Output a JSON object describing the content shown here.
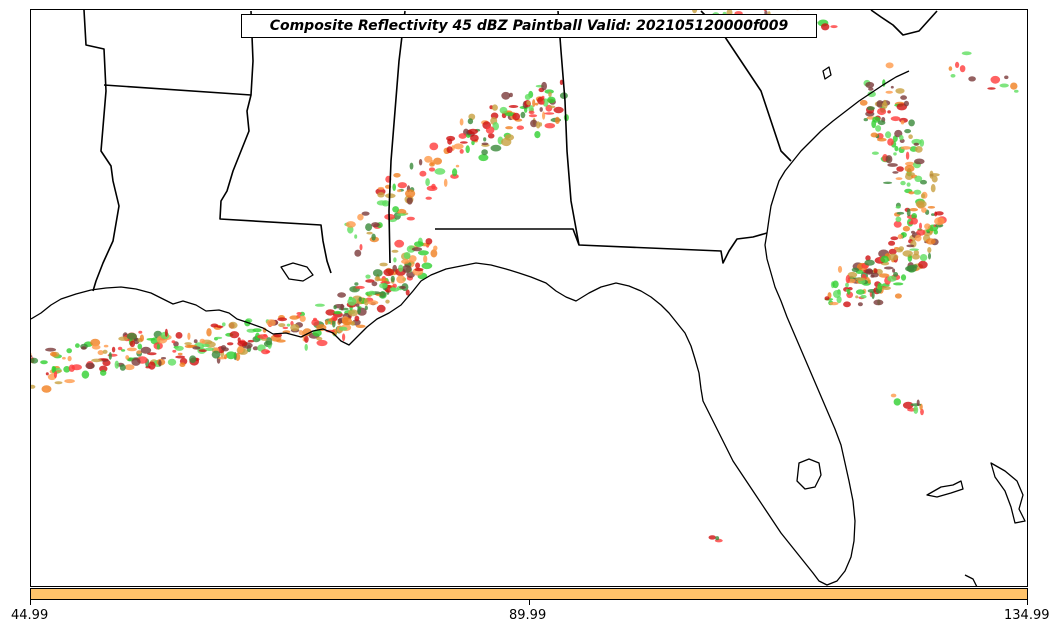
{
  "title": "Composite Reflectivity 45 dBZ Paintball Valid: 202105120000f009",
  "colorbar": {
    "color": "#ffc36a",
    "ticks": [
      "44.99",
      "89.99",
      "134.99"
    ]
  },
  "map": {
    "region": "Southeastern United States",
    "features": [
      "state-borders",
      "coastline",
      "florida-peninsula",
      "gulf-of-mexico",
      "atlantic-ocean"
    ],
    "paintball_colors": [
      "#ff3b3b",
      "#ff9a4a",
      "#2fcf2f",
      "#5fdf5f",
      "#c8a040",
      "#7a3a3a",
      "#3a8a3a",
      "#d01010",
      "#f08020"
    ]
  }
}
